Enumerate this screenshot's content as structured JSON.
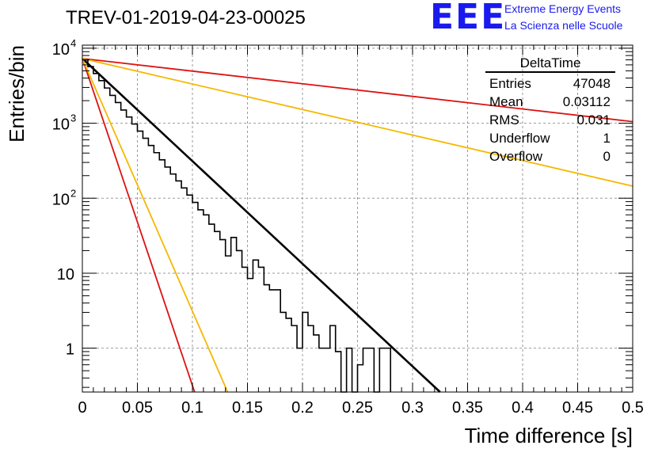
{
  "title": "TREV-01-2019-04-23-00025",
  "logo": {
    "letters": "EEE",
    "line1": "Extreme Energy Events",
    "line2": "La Scienza nelle Scuole"
  },
  "stats": {
    "title": "DeltaTime",
    "rows": [
      {
        "label": "Entries",
        "value": "47048"
      },
      {
        "label": "Mean",
        "value": "0.03112"
      },
      {
        "label": "RMS",
        "value": "0.031"
      },
      {
        "label": "Underflow",
        "value": "1"
      },
      {
        "label": "Overflow",
        "value": "0"
      }
    ]
  },
  "colors": {
    "histogram": "#000000",
    "fit": "#000000",
    "red": "#dd1111",
    "orange": "#f5b800",
    "grid": "#9a9a9a"
  },
  "chart_data": {
    "type": "line",
    "xlabel": "Time difference [s]",
    "ylabel": "Entries/bin",
    "xlim": [
      0,
      0.5
    ],
    "ylim": [
      0.26,
      11000
    ],
    "yscale": "log",
    "grid": true,
    "xticks": [
      {
        "v": 0,
        "label": "0"
      },
      {
        "v": 0.05,
        "label": "0.05"
      },
      {
        "v": 0.1,
        "label": "0.1"
      },
      {
        "v": 0.15,
        "label": "0.15"
      },
      {
        "v": 0.2,
        "label": "0.2"
      },
      {
        "v": 0.25,
        "label": "0.25"
      },
      {
        "v": 0.3,
        "label": "0.3"
      },
      {
        "v": 0.35,
        "label": "0.35"
      },
      {
        "v": 0.4,
        "label": "0.4"
      },
      {
        "v": 0.45,
        "label": "0.45"
      },
      {
        "v": 0.5,
        "label": "0.5"
      }
    ],
    "yticks": [
      {
        "v": 1,
        "base": "1",
        "exp": ""
      },
      {
        "v": 10,
        "base": "10",
        "exp": ""
      },
      {
        "v": 100,
        "base": "10",
        "exp": "2"
      },
      {
        "v": 1000,
        "base": "10",
        "exp": "3"
      },
      {
        "v": 10000,
        "base": "10",
        "exp": "4"
      }
    ],
    "histogram": {
      "bin_width": 0.005,
      "values": [
        7000,
        5700,
        4600,
        3700,
        2950,
        2350,
        1890,
        1500,
        1210,
        975,
        785,
        630,
        505,
        405,
        325,
        260,
        210,
        170,
        137,
        110,
        88,
        70,
        60,
        45,
        36,
        28,
        17,
        30,
        20,
        12,
        8.5,
        15,
        12,
        7,
        6,
        6,
        3,
        2.5,
        2,
        1,
        3,
        2,
        1.5,
        1,
        1,
        2,
        0.9,
        0,
        1,
        0,
        0.6,
        1,
        1,
        0.2,
        1,
        1
      ]
    },
    "lines": [
      {
        "color": "black",
        "x": [
          0,
          0.325
        ],
        "y": [
          7300,
          0.26
        ]
      },
      {
        "color": "red",
        "x": [
          0,
          0.5
        ],
        "y": [
          7300,
          1050
        ]
      },
      {
        "color": "orange",
        "x": [
          0,
          0.5
        ],
        "y": [
          7300,
          145
        ]
      },
      {
        "color": "red",
        "x": [
          0,
          0.102
        ],
        "y": [
          7300,
          0.26
        ]
      },
      {
        "color": "orange",
        "x": [
          0,
          0.132
        ],
        "y": [
          7300,
          0.26
        ]
      }
    ]
  }
}
